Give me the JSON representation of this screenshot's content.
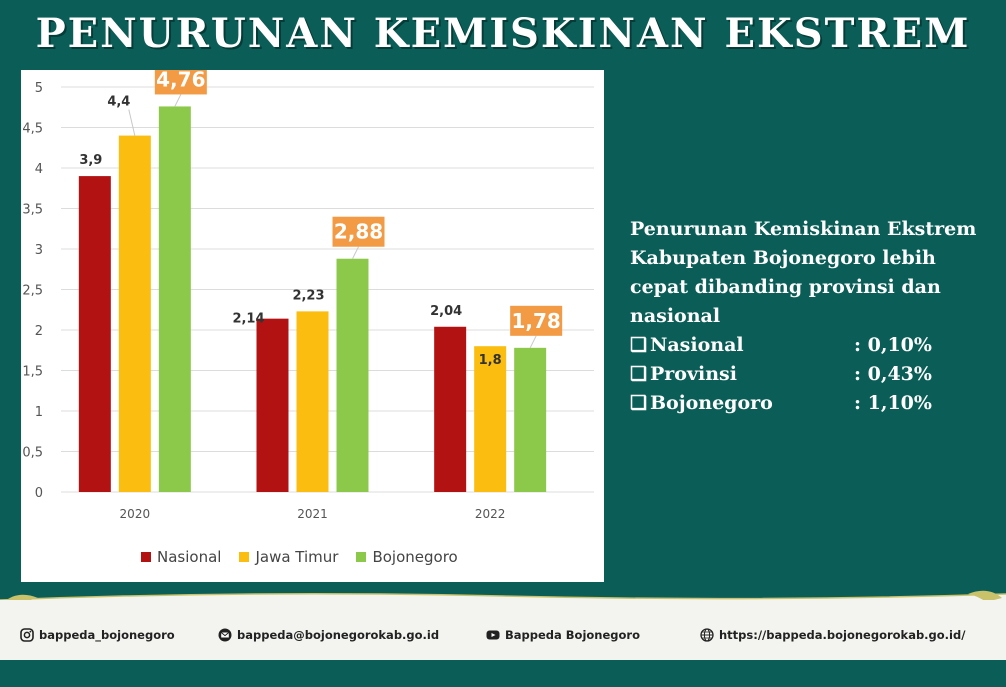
{
  "header": {
    "title": "PENURUNAN KEMISKINAN EKSTREM"
  },
  "chart_data": {
    "type": "bar",
    "categories": [
      "2020",
      "2021",
      "2022"
    ],
    "series": [
      {
        "name": "Nasional",
        "color": "#b31212",
        "values": [
          3.9,
          2.14,
          2.04
        ],
        "labels": [
          "3,9",
          "2,14",
          "2,04"
        ]
      },
      {
        "name": "Jawa Timur",
        "color": "#fbbd0f",
        "values": [
          4.4,
          2.23,
          1.8
        ],
        "labels": [
          "4,4",
          "2,23",
          "1,8"
        ]
      },
      {
        "name": "Bojonegoro",
        "color": "#8cc94a",
        "values": [
          4.76,
          2.88,
          1.78
        ],
        "labels": [
          "4,76",
          "2,88",
          "1,78"
        ]
      }
    ],
    "highlight_color": "#f39a45",
    "yticks": [
      "0",
      "0,5",
      "1",
      "1,5",
      "2",
      "2,5",
      "3",
      "3,5",
      "4",
      "4,5",
      "5"
    ],
    "ylim": [
      0,
      5
    ],
    "grid": true,
    "legend_position": "bottom"
  },
  "info": {
    "lines": [
      "Penurunan Kemiskinan Ekstrem",
      "Kabupaten Bojonegoro lebih",
      "cepat dibanding provinsi dan",
      "nasional"
    ],
    "checkbox_glyph": "❑",
    "stats": [
      {
        "label": "Nasional",
        "value": ": 0,10%"
      },
      {
        "label": "Provinsi",
        "value": ": 0,43%"
      },
      {
        "label": "Bojonegoro",
        "value": ": 1,10%"
      }
    ]
  },
  "footer": {
    "instagram": "bappeda_bojonegoro",
    "email": "bappeda@bojonegorokab.go.id",
    "youtube": "Bappeda Bojonegoro",
    "website": "https://bappeda.bojonegorokab.go.id/",
    "icons": [
      "instagram-icon",
      "email-icon",
      "youtube-icon",
      "globe-icon"
    ]
  }
}
